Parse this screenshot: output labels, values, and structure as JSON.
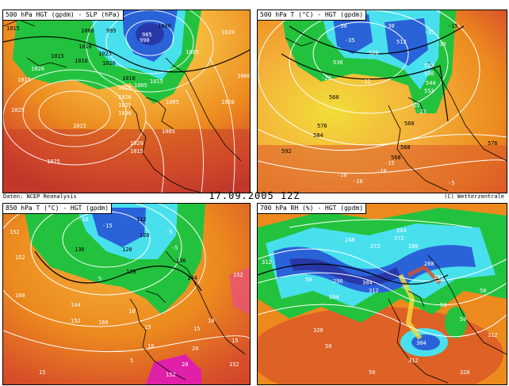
{
  "header": {
    "source": "Daten: NCEP Reanalysis",
    "datetime": "17.09.2005  12Z",
    "copyright": "(C) Wetterzentrale"
  },
  "colors": {
    "deep_red": "#b8302a",
    "red": "#d8502a",
    "orange": "#ec8a1e",
    "light_orange": "#f4b03a",
    "yellow": "#f2de3a",
    "green": "#23c23e",
    "cyan": "#49e0ee",
    "blue": "#2a62d8",
    "dark_blue": "#2838a8",
    "magenta": "#e020a8"
  },
  "panels": [
    {
      "id": "slp",
      "title": "500 hPa HGT (gpdm) - SLP (hPa)",
      "labels": [
        "1015",
        "1000",
        "995",
        "985",
        "1000",
        "1010",
        "1015",
        "1020",
        "1025",
        "1010",
        "1020",
        "1010",
        "1020",
        "1025",
        "1015",
        "1010",
        "1005",
        "1015",
        "1025",
        "1030",
        "1020",
        "1015",
        "1020",
        "1025",
        "1005",
        "1005",
        "1015",
        "1020",
        "1005",
        "990",
        "1000"
      ]
    },
    {
      "id": "t500",
      "title": "500 hPa T (°C) - HGT (gpdm)",
      "labels": [
        "-30",
        "-35",
        "-30",
        "-35",
        "-30",
        "-15",
        "536",
        "512",
        "520",
        "528",
        "536",
        "544",
        "560",
        "568",
        "-20",
        "-22",
        "-25",
        "560",
        "576",
        "584",
        "592",
        "568",
        "576",
        "-15",
        "-10",
        "-10",
        "-5",
        "-25",
        "-10",
        "552"
      ]
    },
    {
      "id": "t850",
      "title": "850 hPa T (°C) - HGT (gpdm)",
      "labels": [
        "-10",
        "112",
        "-15",
        "120",
        "-5",
        "152",
        "136",
        "120",
        "128",
        "136",
        "144",
        "-5",
        "5",
        "144",
        "152",
        "160",
        "152",
        "160",
        "10",
        "15",
        "10",
        "15",
        "20",
        "15",
        "152",
        "15",
        "20",
        "10",
        "5",
        "152",
        "152"
      ]
    },
    {
      "id": "rh700",
      "title": "700 hPa RH (%) - HGT (gpdm)",
      "labels": [
        "248",
        "264",
        "272",
        "272",
        "280",
        "288",
        "296",
        "304",
        "312",
        "312",
        "304",
        "296",
        "304",
        "312",
        "320",
        "320",
        "50",
        "50",
        "50",
        "50",
        "50",
        "50",
        "312"
      ]
    }
  ]
}
